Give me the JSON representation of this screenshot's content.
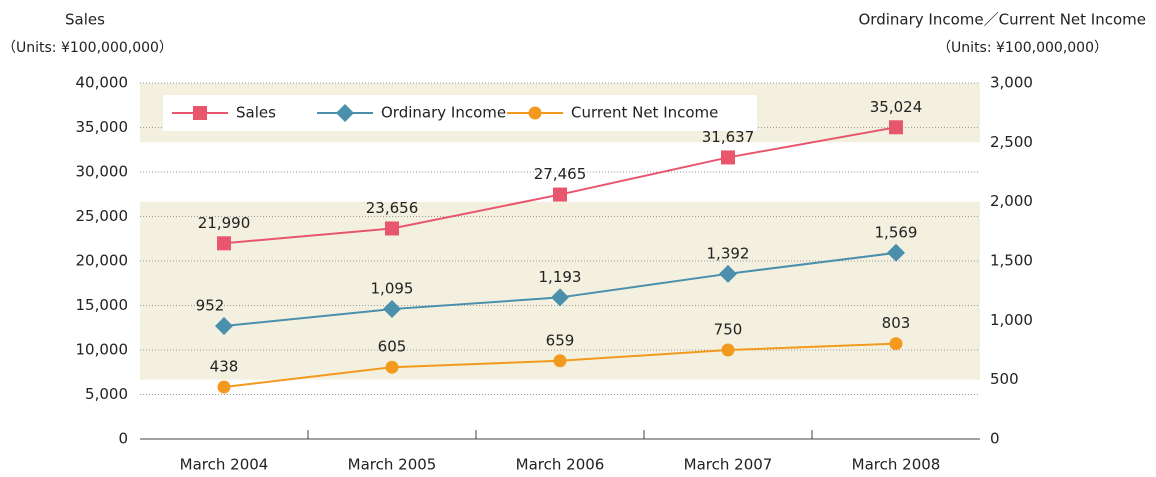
{
  "chart_data": {
    "type": "line",
    "y_axis_title": "Sales",
    "y_axis_units": "（Units: ¥100,000,000）",
    "y2_axis_title": "Ordinary Income／Current Net Income",
    "y2_axis_units": "（Units: ¥100,000,000）",
    "categories": [
      "March 2004",
      "March 2005",
      "March 2006",
      "March 2007",
      "March 2008"
    ],
    "series": [
      {
        "name": "Sales",
        "color": "#e8566e",
        "marker": "square",
        "axis": "y",
        "values": [
          21990,
          23656,
          27465,
          31637,
          35024
        ],
        "value_labels": [
          "21,990",
          "23,656",
          "27,465",
          "31,637",
          "35,024"
        ]
      },
      {
        "name": "Ordinary Income",
        "color": "#4a8fab",
        "marker": "diamond",
        "axis": "y2",
        "values": [
          952,
          1095,
          1193,
          1392,
          1569
        ],
        "value_labels": [
          "952",
          "1,095",
          "1,193",
          "1,392",
          "1,569"
        ]
      },
      {
        "name": "Current Net Income",
        "color": "#f39a1e",
        "marker": "circle",
        "axis": "y2",
        "values": [
          438,
          605,
          659,
          750,
          803
        ]
      }
    ],
    "ylim": [
      0,
      40000
    ],
    "yticks": [
      0,
      {
        "value": 5000,
        "label": "5,000"
      },
      {
        "value": 10000,
        "label": "10,000"
      },
      {
        "value": 15000,
        "label": "15,000"
      },
      {
        "value": 20000,
        "label": "20,000"
      },
      {
        "value": 25000,
        "label": "25,000"
      },
      {
        "value": 30000,
        "label": "30,000"
      },
      {
        "value": 35000,
        "label": "35,000"
      },
      {
        "value": 40000,
        "label": "40,000"
      }
    ],
    "y2lim": [
      0,
      3000
    ],
    "y2ticks": [
      0,
      500,
      {
        "value": 1000,
        "label": "1,000"
      },
      {
        "value": 1500,
        "label": "1,500"
      },
      {
        "value": 2000,
        "label": "2,000"
      },
      {
        "value": 2500,
        "label": "2,500"
      },
      {
        "value": 3000,
        "label": "3,000"
      }
    ],
    "grid": true,
    "legend": "top-left"
  }
}
